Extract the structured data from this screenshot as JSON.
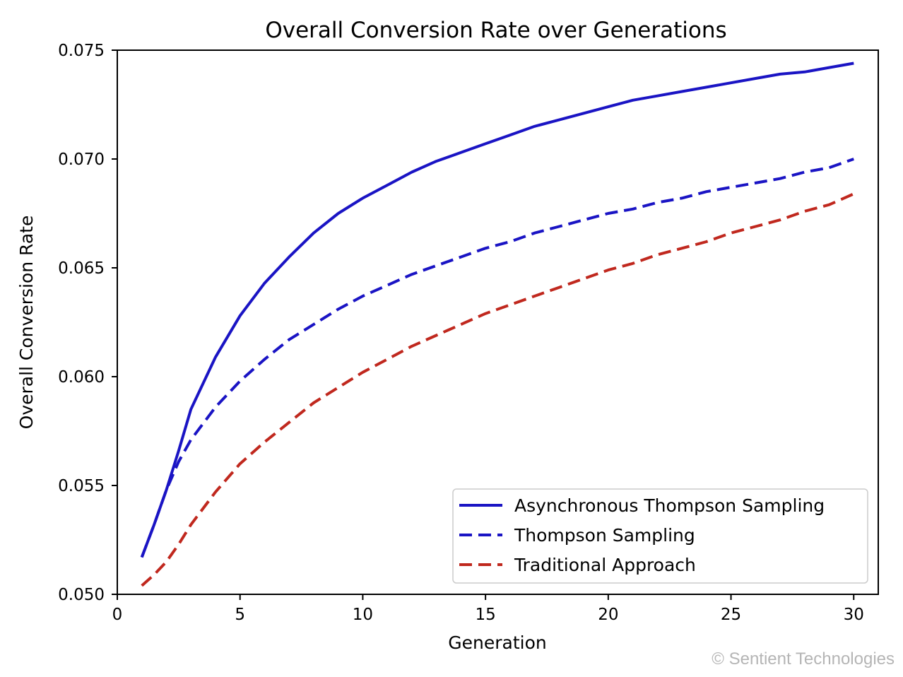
{
  "chart_data": {
    "type": "line",
    "title": "Overall Conversion Rate over Generations",
    "xlabel": "Generation",
    "ylabel": "Overall Conversion Rate",
    "xlim": [
      0,
      31
    ],
    "ylim": [
      0.05,
      0.075
    ],
    "xticks": [
      0,
      5,
      10,
      15,
      20,
      25,
      30
    ],
    "xtick_labels": [
      "0",
      "5",
      "10",
      "15",
      "20",
      "25",
      "30"
    ],
    "yticks": [
      0.05,
      0.055,
      0.06,
      0.065,
      0.07,
      0.075
    ],
    "ytick_labels": [
      "0.050",
      "0.055",
      "0.060",
      "0.065",
      "0.070",
      "0.075"
    ],
    "grid": false,
    "legend_position": "lower-right",
    "x": [
      1,
      1.5,
      2,
      2.5,
      3,
      4,
      5,
      6,
      7,
      8,
      9,
      10,
      11,
      12,
      13,
      14,
      15,
      16,
      17,
      18,
      19,
      20,
      21,
      22,
      23,
      24,
      25,
      26,
      27,
      28,
      29,
      30
    ],
    "series": [
      {
        "name": "Asynchronous Thompson Sampling",
        "color": "#1a14c4",
        "style": "solid",
        "values": [
          0.0517,
          0.0532,
          0.0548,
          0.0566,
          0.0585,
          0.0609,
          0.0628,
          0.0643,
          0.0655,
          0.0666,
          0.0675,
          0.0682,
          0.0688,
          0.0694,
          0.0699,
          0.0703,
          0.0707,
          0.0711,
          0.0715,
          0.0718,
          0.0721,
          0.0724,
          0.0727,
          0.0729,
          0.0731,
          0.0733,
          0.0735,
          0.0737,
          0.0739,
          0.074,
          0.0742,
          0.0744
        ]
      },
      {
        "name": "Thompson Sampling",
        "color": "#1a14c4",
        "style": "dashed",
        "values": [
          0.0517,
          0.0532,
          0.0548,
          0.0561,
          0.0571,
          0.0586,
          0.0598,
          0.0608,
          0.0617,
          0.0624,
          0.0631,
          0.0637,
          0.0642,
          0.0647,
          0.0651,
          0.0655,
          0.0659,
          0.0662,
          0.0666,
          0.0669,
          0.0672,
          0.0675,
          0.0677,
          0.068,
          0.0682,
          0.0685,
          0.0687,
          0.0689,
          0.0691,
          0.0694,
          0.0696,
          0.07
        ]
      },
      {
        "name": "Traditional Approach",
        "color": "#c0281e",
        "style": "dashed",
        "values": [
          0.0504,
          0.0509,
          0.0515,
          0.0523,
          0.0532,
          0.0547,
          0.056,
          0.057,
          0.0579,
          0.0588,
          0.0595,
          0.0602,
          0.0608,
          0.0614,
          0.0619,
          0.0624,
          0.0629,
          0.0633,
          0.0637,
          0.0641,
          0.0645,
          0.0649,
          0.0652,
          0.0656,
          0.0659,
          0.0662,
          0.0666,
          0.0669,
          0.0672,
          0.0676,
          0.0679,
          0.0684
        ]
      }
    ]
  },
  "watermark": "© Sentient Technologies"
}
